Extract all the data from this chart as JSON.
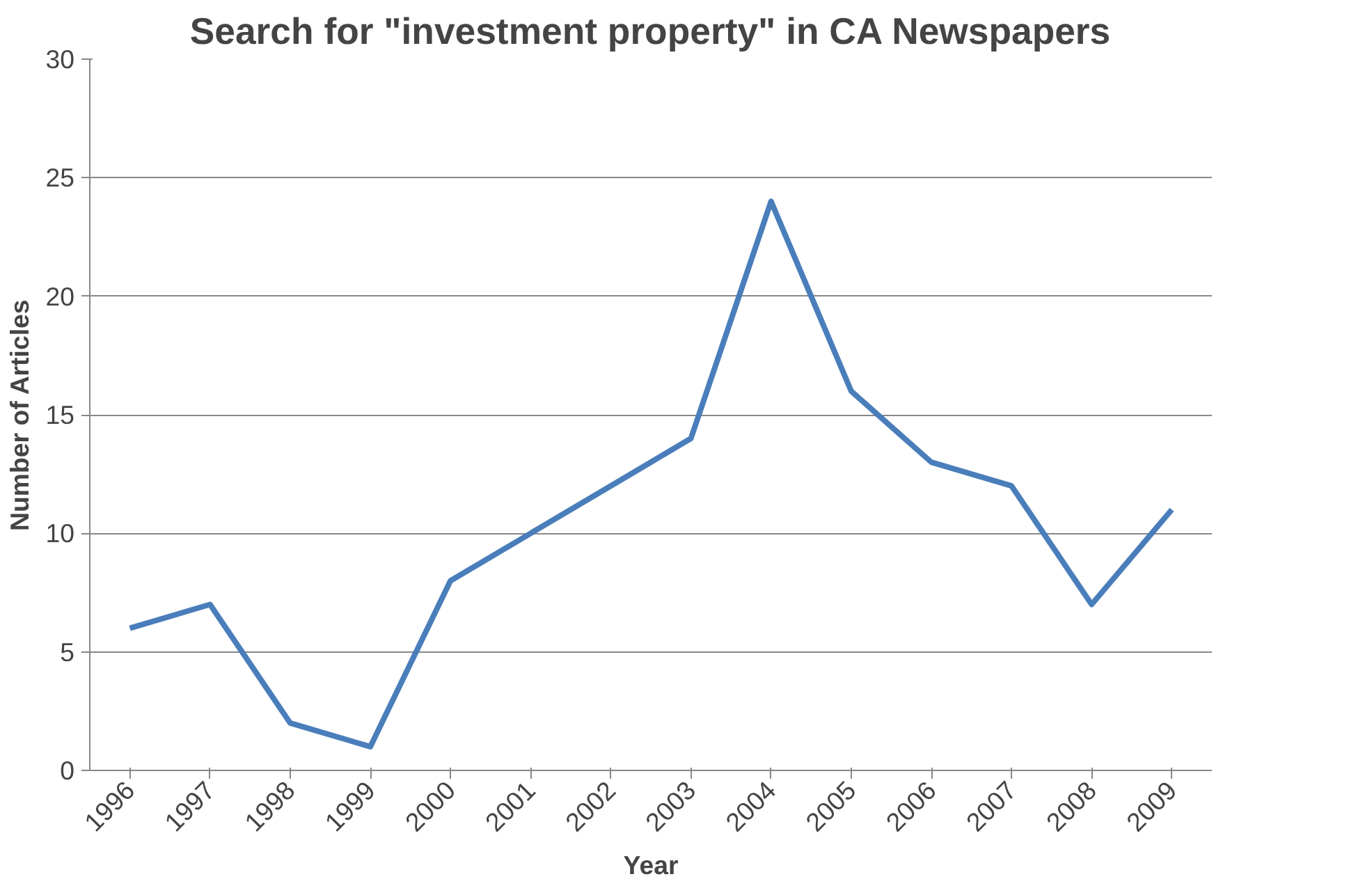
{
  "chart_data": {
    "type": "line",
    "title": "Search for \"investment property\" in CA Newspapers",
    "xlabel": "Year",
    "ylabel": "Number of Articles",
    "categories": [
      "1996",
      "1997",
      "1998",
      "1999",
      "2000",
      "2001",
      "2002",
      "2003",
      "2004",
      "2005",
      "2006",
      "2007",
      "2008",
      "2009"
    ],
    "series": [
      {
        "color": "#4a7ebb",
        "values": [
          6,
          7,
          2,
          1,
          8,
          10,
          12,
          14,
          24,
          16,
          13,
          12,
          7,
          11
        ]
      }
    ],
    "ylim": [
      0,
      30
    ],
    "yticks": [
      0,
      5,
      10,
      15,
      20,
      25,
      30
    ],
    "grid": "y",
    "marker": "none",
    "line_style": "solid"
  }
}
